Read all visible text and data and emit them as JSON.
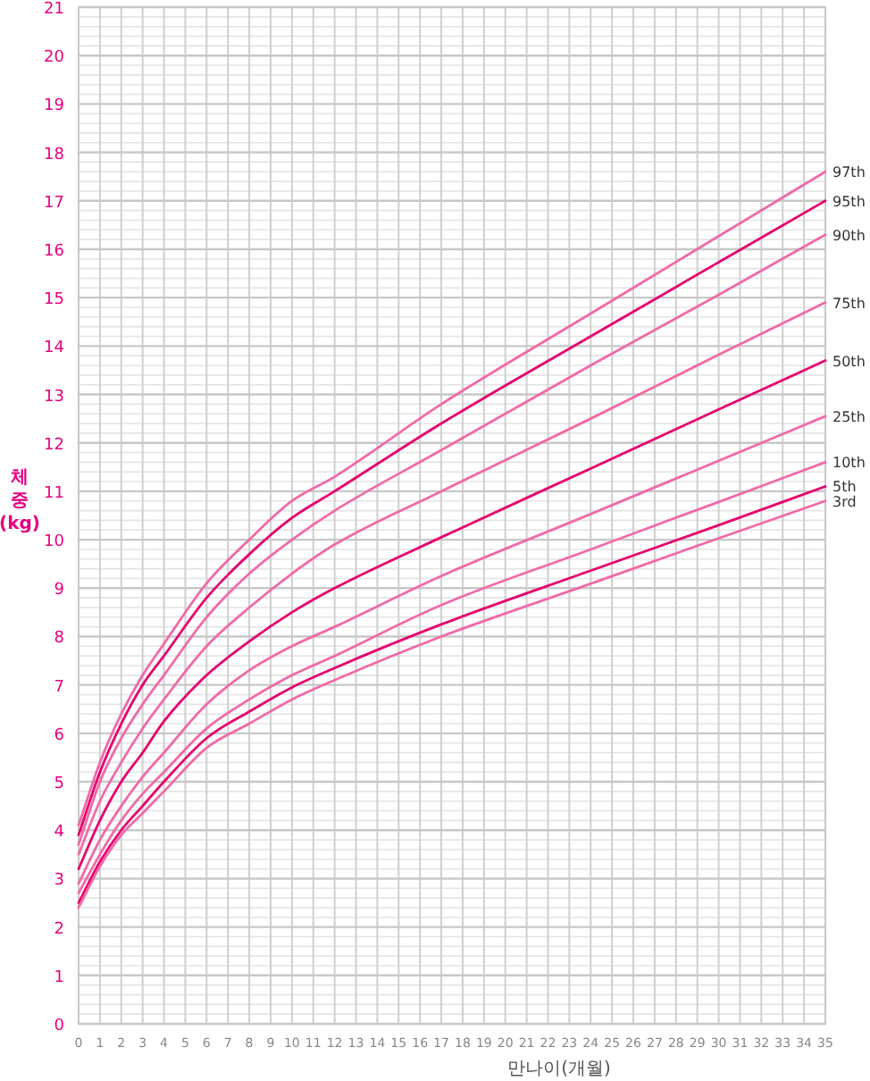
{
  "chart_data": {
    "type": "line",
    "xlabel": "만나이(개월)",
    "ylabel": "체\n중\n(kg)",
    "x": [
      0,
      1,
      2,
      3,
      4,
      6,
      8,
      10,
      12,
      17,
      24,
      30,
      35
    ],
    "xlim": [
      0,
      35
    ],
    "xticks": [
      0,
      1,
      2,
      3,
      4,
      5,
      6,
      7,
      8,
      9,
      10,
      11,
      12,
      13,
      14,
      15,
      16,
      17,
      18,
      19,
      20,
      21,
      22,
      23,
      24,
      25,
      26,
      27,
      28,
      29,
      30,
      31,
      32,
      33,
      34,
      35
    ],
    "ylim": [
      0,
      21
    ],
    "yticks": [
      0,
      1,
      2,
      3,
      4,
      5,
      6,
      7,
      8,
      9,
      10,
      11,
      12,
      13,
      14,
      15,
      16,
      17,
      18,
      19,
      20,
      21
    ],
    "grid": true,
    "series": [
      {
        "name": "97th",
        "color": "#f06aa8",
        "values": [
          4.1,
          5.4,
          6.4,
          7.2,
          7.85,
          9.1,
          10.0,
          10.8,
          11.3,
          12.8,
          14.67,
          16.27,
          17.6
        ]
      },
      {
        "name": "95th",
        "color": "#e6006e",
        "values": [
          3.9,
          5.2,
          6.2,
          7.0,
          7.6,
          8.8,
          9.7,
          10.45,
          11.0,
          12.4,
          14.2,
          15.73,
          17.0
        ]
      },
      {
        "name": "90th",
        "color": "#f06aa8",
        "values": [
          3.7,
          5.0,
          5.9,
          6.6,
          7.2,
          8.4,
          9.3,
          10.0,
          10.6,
          11.85,
          13.6,
          15.06,
          16.3
        ]
      },
      {
        "name": "75th",
        "color": "#f06aa8",
        "values": [
          3.5,
          4.6,
          5.4,
          6.1,
          6.7,
          7.8,
          8.6,
          9.3,
          9.9,
          11.0,
          12.5,
          13.82,
          14.9
        ]
      },
      {
        "name": "50th",
        "color": "#e6006e",
        "values": [
          3.2,
          4.2,
          5.0,
          5.6,
          6.25,
          7.2,
          7.9,
          8.5,
          9.0,
          10.05,
          11.47,
          12.69,
          13.7
        ]
      },
      {
        "name": "25th",
        "color": "#f06aa8",
        "values": [
          2.9,
          3.8,
          4.5,
          5.1,
          5.6,
          6.6,
          7.3,
          7.8,
          8.2,
          9.25,
          10.53,
          11.63,
          12.55
        ]
      },
      {
        "name": "10th",
        "color": "#f06aa8",
        "values": [
          2.7,
          3.5,
          4.2,
          4.75,
          5.2,
          6.1,
          6.7,
          7.2,
          7.6,
          8.65,
          9.8,
          10.78,
          11.6
        ]
      },
      {
        "name": "5th",
        "color": "#e6006e",
        "values": [
          2.5,
          3.35,
          4.0,
          4.5,
          5.0,
          5.9,
          6.45,
          6.95,
          7.35,
          8.25,
          9.36,
          10.3,
          11.1
        ]
      },
      {
        "name": "3rd",
        "color": "#f06aa8",
        "values": [
          2.4,
          3.25,
          3.9,
          4.35,
          4.8,
          5.7,
          6.2,
          6.7,
          7.1,
          8.0,
          9.09,
          10.03,
          10.8
        ]
      }
    ]
  }
}
